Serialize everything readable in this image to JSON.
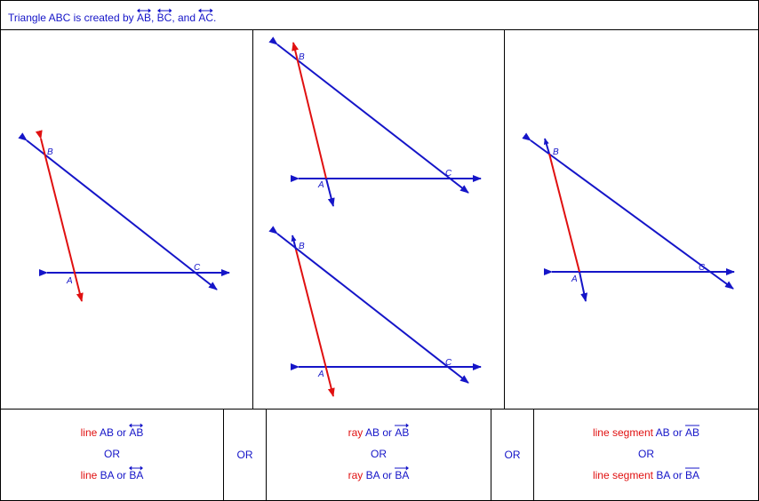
{
  "header": {
    "title_prefix": "Triangle ABC is created by ",
    "sym_ab": "AB",
    "sep1": ", ",
    "sym_bc": "BC",
    "sep2": ", and ",
    "sym_ac": "AC",
    "end": "."
  },
  "colors": {
    "blue": "#1515c8",
    "red": "#e01010"
  },
  "points": {
    "a": "A",
    "b": "B",
    "c": "C"
  },
  "cells": {
    "line": {
      "r1_word": "line",
      "r1_text": " AB or ",
      "r1_sym": "AB",
      "middle": "OR",
      "r2_word": "line",
      "r2_text": " BA or ",
      "r2_sym": "BA"
    },
    "ray": {
      "r1_word": "ray",
      "r1_text": " AB or ",
      "r1_sym": "AB",
      "middle": "OR",
      "r2_word": "ray",
      "r2_text": " BA or ",
      "r2_sym": "BA"
    },
    "segment": {
      "r1_word": "line segment",
      "r1_text": " AB or ",
      "r1_sym": "AB",
      "middle": "OR",
      "r2_word": "line segment",
      "r2_text": " BA or ",
      "r2_sym": "BA"
    }
  },
  "or_words": [
    "OR",
    "OR"
  ]
}
